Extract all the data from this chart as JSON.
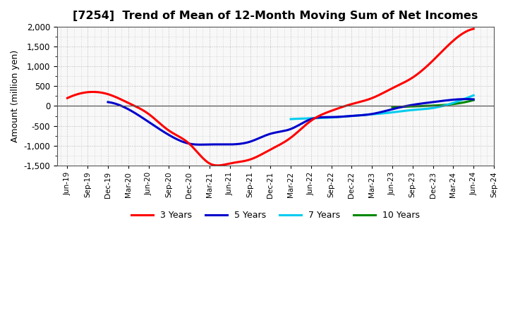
{
  "title": "[7254]  Trend of Mean of 12-Month Moving Sum of Net Incomes",
  "ylabel": "Amount (million yen)",
  "ylim": [
    -1500,
    2000
  ],
  "yticks": [
    -1500,
    -1000,
    -500,
    0,
    500,
    1000,
    1500,
    2000
  ],
  "background_color": "#ffffff",
  "plot_bg_color": "#f8f8f8",
  "grid_color": "#aaaaaa",
  "line_colors": {
    "3y": "#ff0000",
    "5y": "#0000cc",
    "7y": "#00ccee",
    "10y": "#008800"
  },
  "legend_labels": [
    "3 Years",
    "5 Years",
    "7 Years",
    "10 Years"
  ],
  "x_labels": [
    "Jun-19",
    "Sep-19",
    "Dec-19",
    "Mar-20",
    "Jun-20",
    "Sep-20",
    "Dec-20",
    "Mar-21",
    "Jun-21",
    "Sep-21",
    "Dec-21",
    "Mar-22",
    "Jun-22",
    "Sep-22",
    "Dec-22",
    "Mar-23",
    "Jun-23",
    "Sep-23",
    "Dec-23",
    "Mar-24",
    "Jun-24",
    "Sep-24"
  ],
  "series_3y": {
    "x": [
      0,
      1,
      2,
      3,
      4,
      5,
      6,
      7,
      8,
      9,
      10,
      11,
      12,
      13,
      14,
      15,
      16,
      17,
      18,
      19,
      20
    ],
    "y": [
      200,
      350,
      300,
      80,
      -200,
      -620,
      -950,
      -1450,
      -1450,
      -1350,
      -1100,
      -800,
      -370,
      -120,
      50,
      200,
      450,
      720,
      1150,
      1650,
      1950
    ]
  },
  "series_5y": {
    "x": [
      2,
      3,
      4,
      5,
      6,
      7,
      8,
      9,
      10,
      11,
      12,
      13,
      14,
      15,
      16,
      17,
      18,
      19,
      20
    ],
    "y": [
      100,
      -80,
      -400,
      -730,
      -950,
      -970,
      -970,
      -900,
      -700,
      -580,
      -330,
      -280,
      -250,
      -200,
      -80,
      30,
      100,
      160,
      170
    ]
  },
  "series_7y": {
    "x": [
      11,
      12,
      13,
      14,
      15,
      16,
      17,
      18,
      19,
      20
    ],
    "y": [
      -330,
      -310,
      -290,
      -250,
      -210,
      -160,
      -100,
      -50,
      80,
      270
    ]
  },
  "series_10y": {
    "x": [
      16,
      17,
      18,
      19,
      20
    ],
    "y": [
      -30,
      -10,
      10,
      50,
      150
    ]
  }
}
